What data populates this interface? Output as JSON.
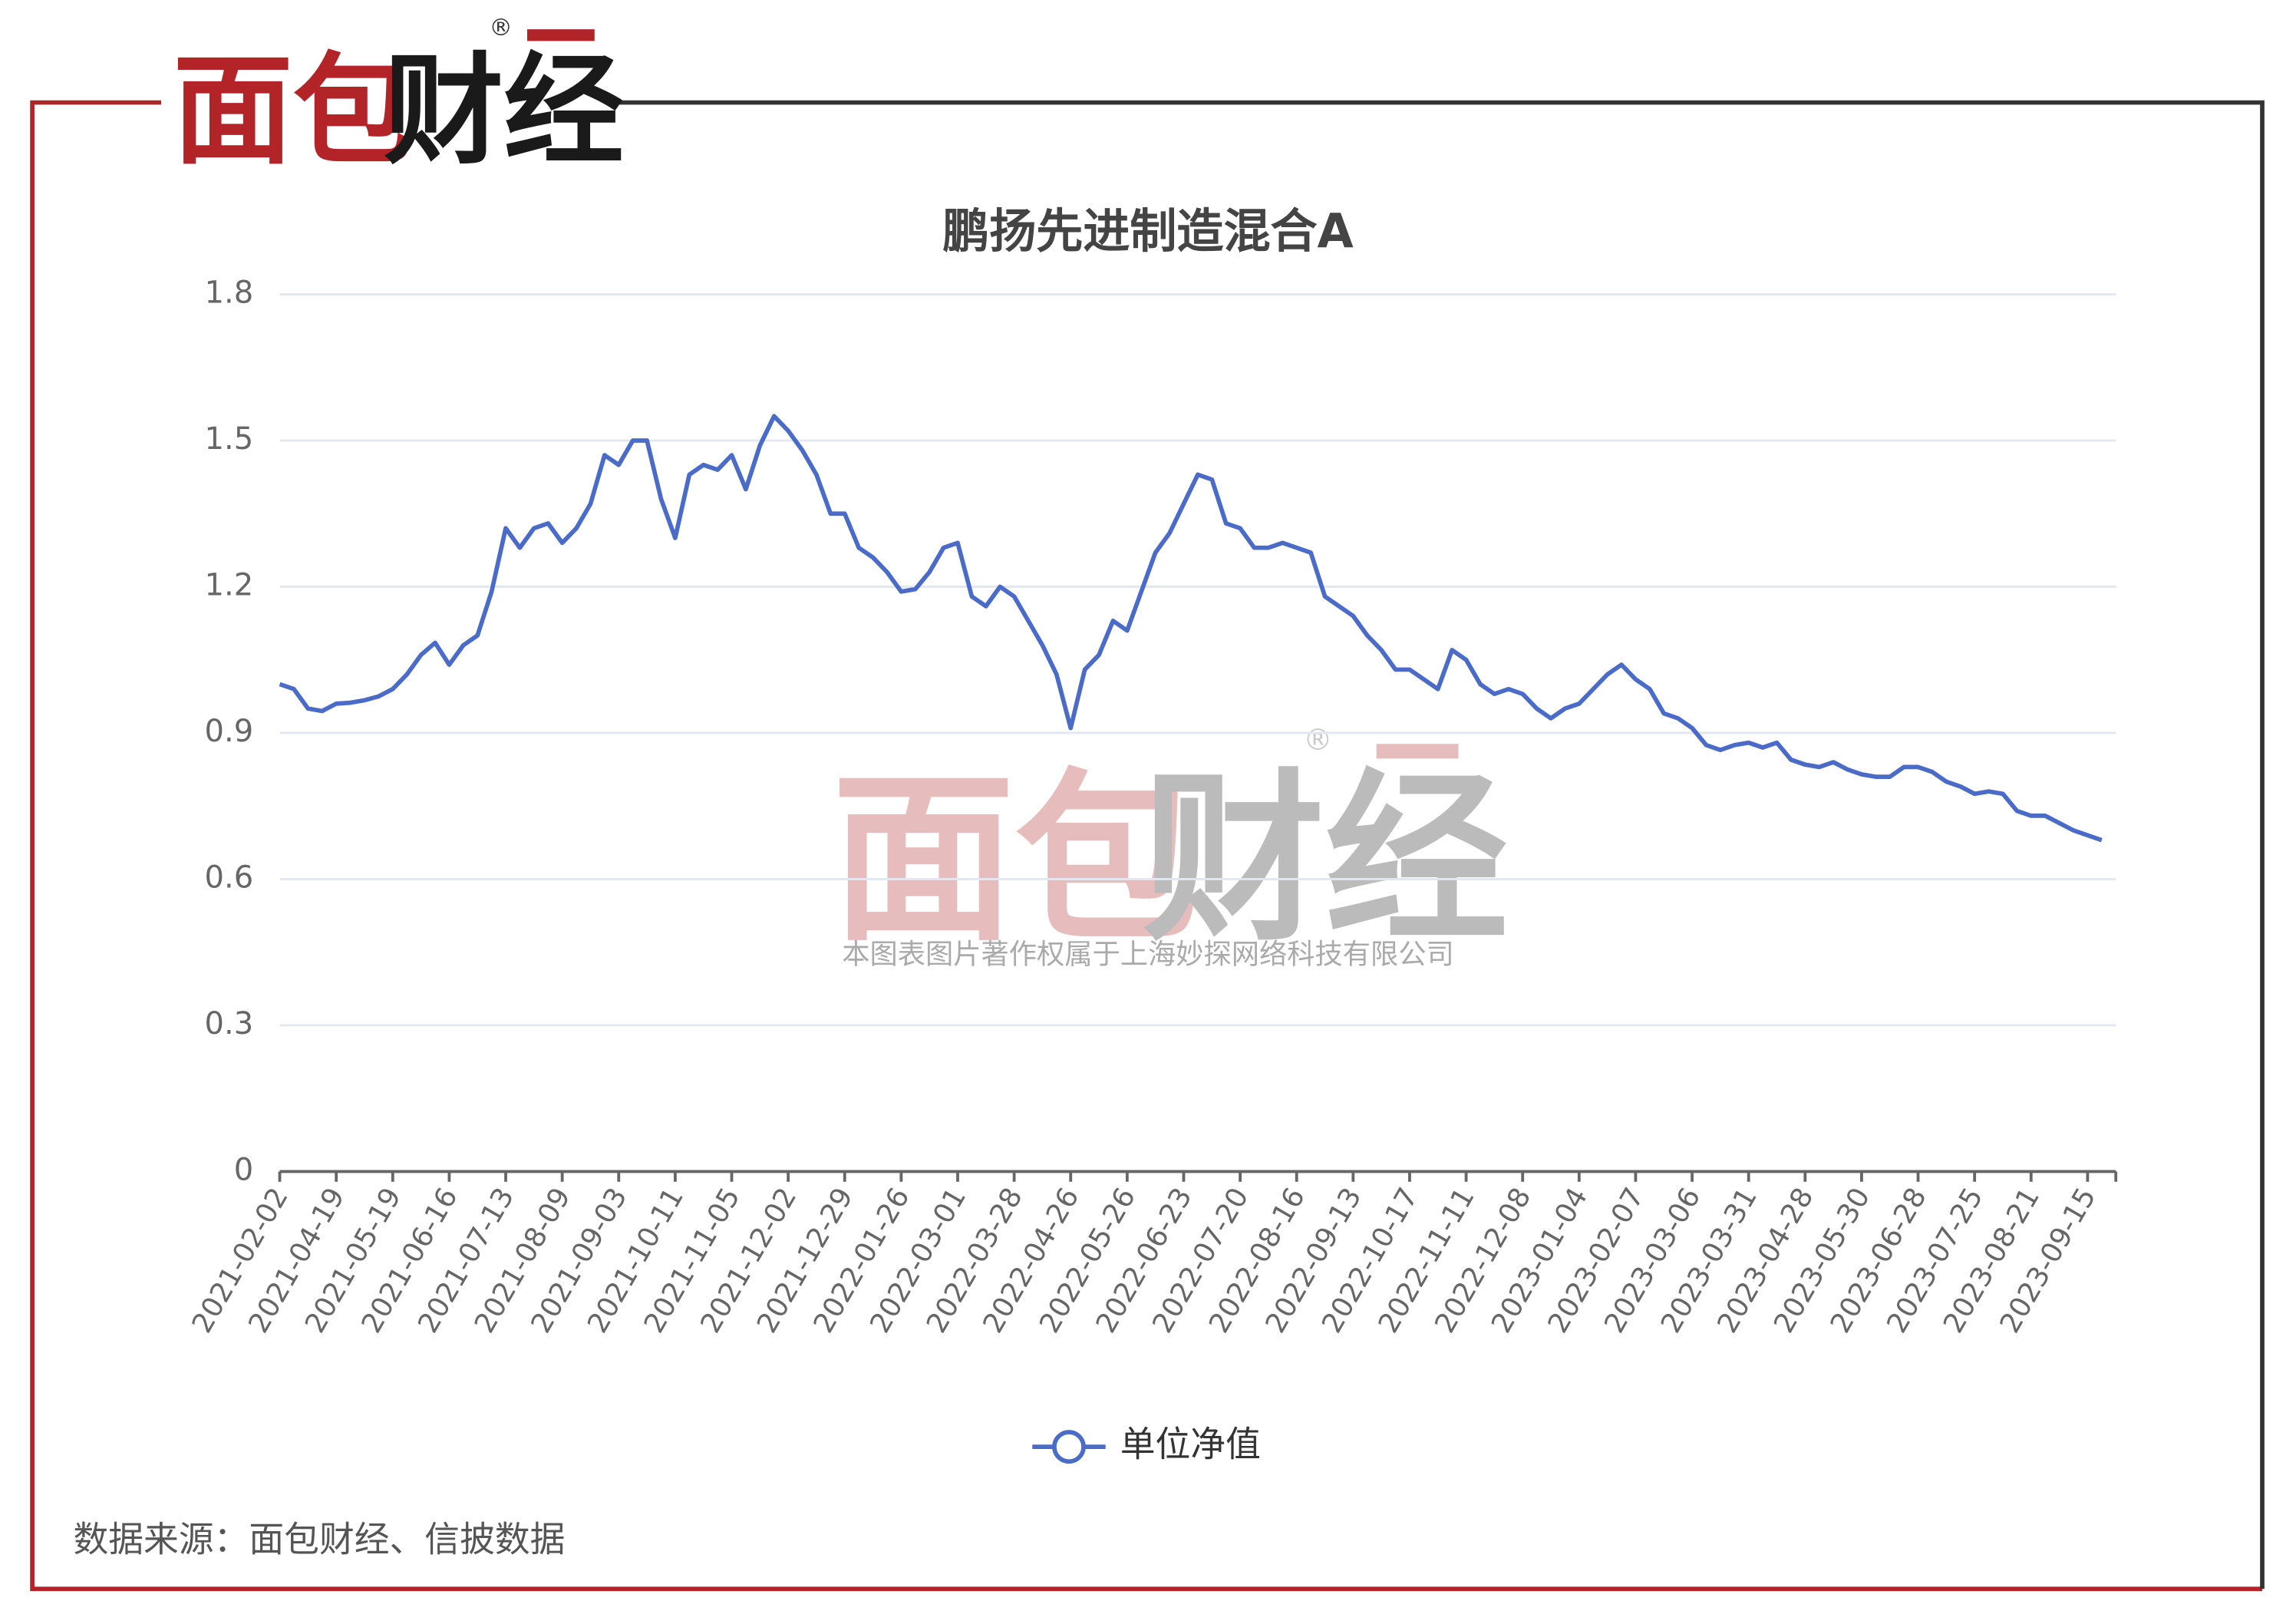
{
  "logo": {
    "text_red": "面包",
    "text_black": "财经",
    "mark": "®"
  },
  "watermark": {
    "text_red": "面包",
    "text_black": "财经",
    "mark": "®",
    "copyright": "本图表图片著作权属于上海妙探网络科技有限公司"
  },
  "source": "数据来源：面包财经、信披数据",
  "chart_data": {
    "type": "line",
    "title": "鹏扬先进制造混合A",
    "categories": [
      "2021-02-02",
      null,
      null,
      null,
      "2021-04-19",
      null,
      null,
      null,
      "2021-05-19",
      null,
      null,
      null,
      "2021-06-16",
      null,
      null,
      null,
      "2021-07-13",
      null,
      null,
      null,
      "2021-08-09",
      null,
      null,
      null,
      "2021-09-03",
      null,
      null,
      null,
      "2021-10-11",
      null,
      null,
      null,
      "2021-11-05",
      null,
      null,
      null,
      "2021-12-02",
      null,
      null,
      null,
      "2021-12-29",
      null,
      null,
      null,
      "2022-01-26",
      null,
      null,
      null,
      "2022-03-01",
      null,
      null,
      null,
      "2022-03-28",
      null,
      null,
      null,
      "2022-04-26",
      null,
      null,
      null,
      "2022-05-26",
      null,
      null,
      null,
      "2022-06-23",
      null,
      null,
      null,
      "2022-07-20",
      null,
      null,
      null,
      "2022-08-16",
      null,
      null,
      null,
      "2022-09-13",
      null,
      null,
      null,
      "2022-10-17",
      null,
      null,
      null,
      "2022-11-11",
      null,
      null,
      null,
      "2022-12-08",
      null,
      null,
      null,
      "2023-01-04",
      null,
      null,
      null,
      "2023-02-07",
      null,
      null,
      null,
      "2023-03-06",
      null,
      null,
      null,
      "2023-03-31",
      null,
      null,
      null,
      "2023-04-28",
      null,
      null,
      null,
      "2023-05-30",
      null,
      null,
      null,
      "2023-06-28",
      null,
      null,
      null,
      "2023-07-25",
      null,
      null,
      null,
      "2023-08-21",
      null,
      null,
      null,
      "2023-09-15",
      null
    ],
    "series": [
      {
        "name": "单位净值",
        "color": "#4a6bc8",
        "values": [
          1.0,
          0.99,
          0.95,
          0.945,
          0.96,
          0.962,
          0.967,
          0.975,
          0.99,
          1.02,
          1.06,
          1.085,
          1.04,
          1.08,
          1.1,
          1.19,
          1.32,
          1.28,
          1.32,
          1.33,
          1.29,
          1.32,
          1.37,
          1.47,
          1.45,
          1.5,
          1.5,
          1.38,
          1.3,
          1.43,
          1.45,
          1.44,
          1.47,
          1.4,
          1.49,
          1.55,
          1.52,
          1.48,
          1.43,
          1.35,
          1.35,
          1.28,
          1.26,
          1.23,
          1.19,
          1.195,
          1.23,
          1.28,
          1.29,
          1.18,
          1.16,
          1.2,
          1.18,
          1.13,
          1.08,
          1.02,
          0.91,
          1.03,
          1.06,
          1.13,
          1.11,
          1.19,
          1.27,
          1.31,
          1.37,
          1.43,
          1.42,
          1.33,
          1.32,
          1.28,
          1.28,
          1.29,
          1.28,
          1.27,
          1.18,
          1.16,
          1.14,
          1.1,
          1.07,
          1.03,
          1.03,
          1.01,
          0.99,
          1.07,
          1.05,
          1.0,
          0.98,
          0.99,
          0.98,
          0.95,
          0.93,
          0.95,
          0.96,
          0.99,
          1.02,
          1.04,
          1.01,
          0.99,
          0.94,
          0.93,
          0.91,
          0.875,
          0.865,
          0.875,
          0.88,
          0.87,
          0.88,
          0.845,
          0.835,
          0.83,
          0.84,
          0.825,
          0.815,
          0.81,
          0.81,
          0.83,
          0.83,
          0.82,
          0.8,
          0.79,
          0.775,
          0.78,
          0.775,
          0.74,
          0.73,
          0.73,
          0.715,
          0.7,
          0.69,
          0.68
        ]
      }
    ],
    "ylim": [
      0,
      1.8
    ],
    "yticks": [
      0,
      0.3,
      0.6,
      0.9,
      1.2,
      1.5,
      1.8
    ],
    "grid": true,
    "legend": "bottom"
  }
}
